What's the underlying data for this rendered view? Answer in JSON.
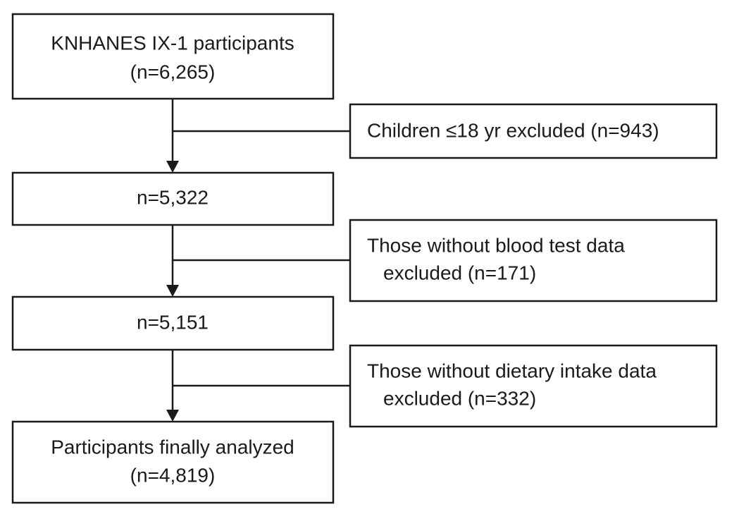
{
  "nodes": [
    {
      "lines": [
        "KNHANES IX-1 participants",
        "(n=6,265)"
      ]
    },
    {
      "lines": [
        "n=5,322"
      ]
    },
    {
      "lines": [
        "n=5,151"
      ]
    },
    {
      "lines": [
        "Participants finally analyzed",
        "(n=4,819)"
      ]
    }
  ],
  "exclusions": [
    {
      "lines": [
        "Children ≤18 yr excluded (n=943)"
      ]
    },
    {
      "lines": [
        "Those without blood test data",
        "excluded (n=171)"
      ]
    },
    {
      "lines": [
        "Those without dietary intake data",
        "excluded (n=332)"
      ]
    }
  ]
}
